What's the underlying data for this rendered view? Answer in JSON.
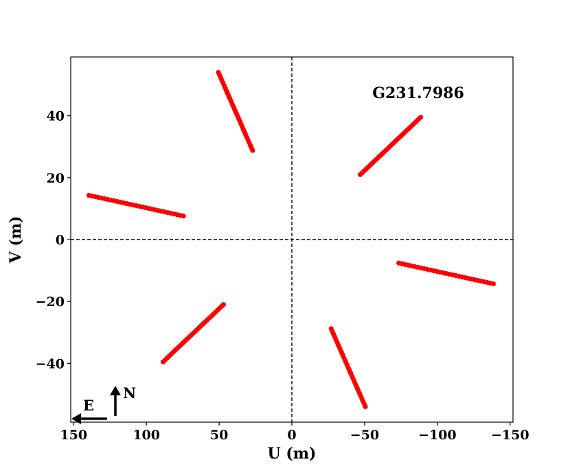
{
  "chart_data": {
    "type": "scatter",
    "title": "",
    "xlabel": "U (m)",
    "ylabel": "V (m)",
    "xlim": [
      152,
      -152
    ],
    "ylim": [
      -59,
      59
    ],
    "x_reversed": true,
    "xticks": [
      150,
      100,
      50,
      0,
      -50,
      -100,
      -150
    ],
    "xtick_labels": [
      "150",
      "100",
      "50",
      "0",
      "−50",
      "−100",
      "−150"
    ],
    "yticks": [
      -40,
      -20,
      0,
      20,
      40
    ],
    "ytick_labels": [
      "−40",
      "−20",
      "0",
      "20",
      "40"
    ],
    "grid": false,
    "marker_color": "#ff0000",
    "annotation": "G231.7986",
    "compass": {
      "east": "E",
      "north": "N"
    },
    "reference_lines": [
      {
        "axis": "x",
        "value": 0,
        "style": "dashed"
      },
      {
        "axis": "y",
        "value": 0,
        "style": "dashed"
      }
    ],
    "tracks": [
      {
        "start": [
          50.5,
          54
        ],
        "end": [
          27,
          28.8
        ],
        "n": 31
      },
      {
        "start": [
          -47,
          21
        ],
        "end": [
          -88.5,
          39.5
        ],
        "n": 31
      },
      {
        "start": [
          139.5,
          14.3
        ],
        "end": [
          74.5,
          7.6
        ],
        "n": 31
      },
      {
        "start": [
          -73.5,
          -7.6
        ],
        "end": [
          -138.5,
          -14.3
        ],
        "n": 31
      },
      {
        "start": [
          47,
          -21
        ],
        "end": [
          88.5,
          -39.5
        ],
        "n": 31
      },
      {
        "start": [
          -27,
          -28.8
        ],
        "end": [
          -50.5,
          -54
        ],
        "n": 31
      }
    ]
  }
}
